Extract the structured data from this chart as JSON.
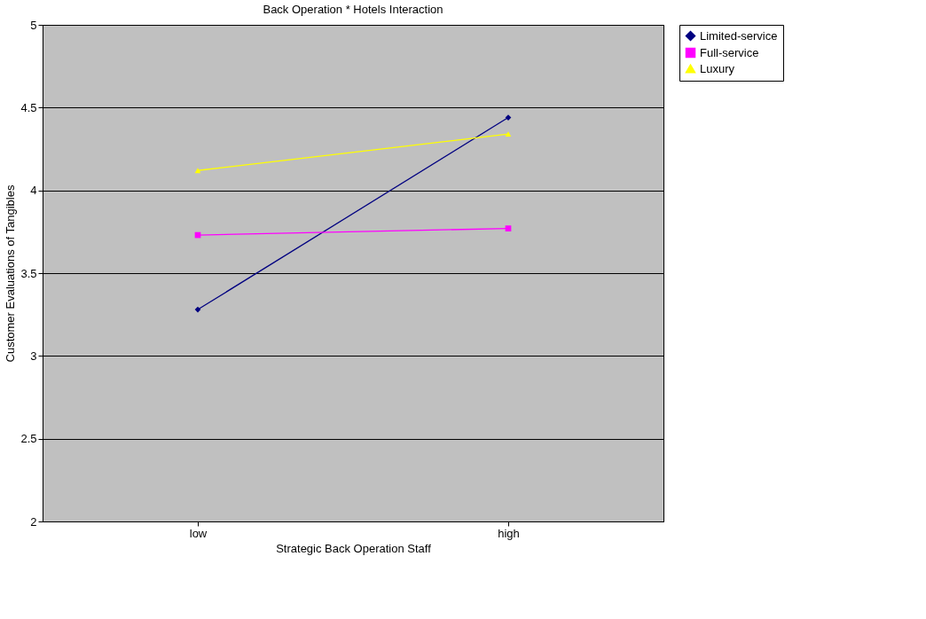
{
  "chart_data": {
    "type": "line",
    "title": "Back Operation * Hotels Interaction",
    "xlabel": "Strategic Back Operation Staff",
    "ylabel": "Customer Evaluations of Tangibles",
    "categories": [
      "low",
      "high"
    ],
    "series": [
      {
        "name": "Limited-service",
        "color": "#000080",
        "marker": "diamond",
        "values": [
          3.28,
          4.44
        ]
      },
      {
        "name": "Full-service",
        "color": "#ff00ff",
        "marker": "square",
        "values": [
          3.73,
          3.77
        ]
      },
      {
        "name": "Luxury",
        "color": "#ffff00",
        "marker": "triangle",
        "values": [
          4.12,
          4.34
        ]
      }
    ],
    "ylim": [
      2,
      5
    ],
    "yticks": [
      2,
      2.5,
      3,
      3.5,
      4,
      4.5,
      5
    ],
    "grid": "y",
    "legend": "right"
  }
}
